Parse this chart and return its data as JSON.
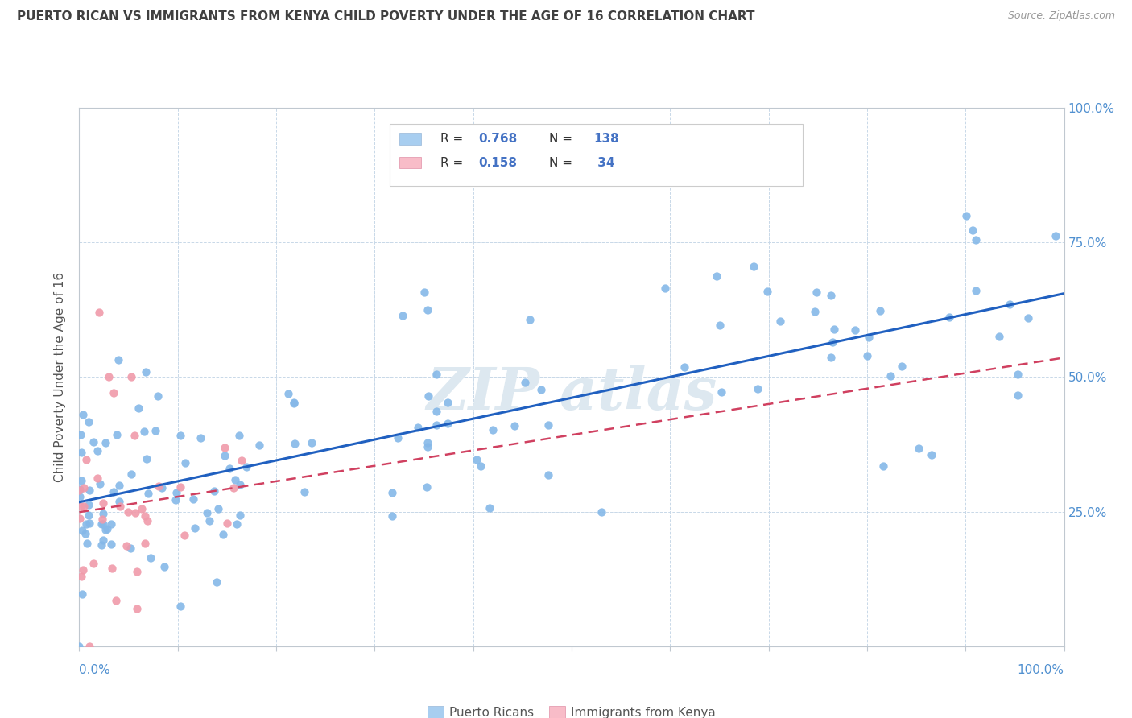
{
  "title": "PUERTO RICAN VS IMMIGRANTS FROM KENYA CHILD POVERTY UNDER THE AGE OF 16 CORRELATION CHART",
  "source": "Source: ZipAtlas.com",
  "ylabel": "Child Poverty Under the Age of 16",
  "right_ticks": [
    "",
    "25.0%",
    "50.0%",
    "75.0%",
    "100.0%"
  ],
  "bottom_left_label": "0.0%",
  "bottom_right_label": "100.0%",
  "pr_R": 0.768,
  "pr_N": 138,
  "kenya_R": 0.158,
  "kenya_N": 34,
  "pr_dot_color": "#85b8e8",
  "kenya_dot_color": "#f09aaa",
  "pr_line_color": "#2060c0",
  "kenya_line_color": "#d04060",
  "pr_legend_color": "#a8cef0",
  "kenya_legend_color": "#f8bcc8",
  "background_color": "#ffffff",
  "grid_color": "#c8d8e8",
  "title_color": "#404040",
  "axis_tick_color": "#5090d0",
  "watermark_color": "#dde8f0",
  "legend_text_color": "#333333",
  "legend_value_color": "#4472c4"
}
